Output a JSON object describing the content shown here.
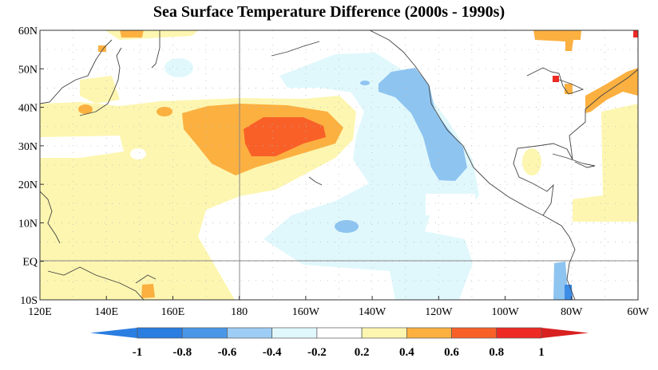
{
  "title": "Sea Surface Temperature Difference (2000s - 1990s)",
  "map": {
    "region": "North Pacific",
    "lon_range": [
      "120E",
      "60W"
    ],
    "lat_range": [
      "10S",
      "60N"
    ],
    "x_ticks": [
      "120E",
      "140E",
      "160E",
      "180",
      "160W",
      "140W",
      "120W",
      "100W",
      "80W",
      "60W"
    ],
    "y_ticks": [
      "60N",
      "50N",
      "40N",
      "30N",
      "20N",
      "10N",
      "EQ",
      "10S"
    ]
  },
  "colorbar": {
    "labels": [
      "-1",
      "-0.8",
      "-0.6",
      "-0.4",
      "-0.2",
      "0.2",
      "0.4",
      "0.6",
      "0.8",
      "1"
    ],
    "colors": [
      "#2a7de1",
      "#4a97e8",
      "#9dcdf5",
      "#e0f8fc",
      "#ffffff",
      "#fdf6b0",
      "#fbb040",
      "#f86028",
      "#ee2a24"
    ],
    "under_color": "#2a7de1",
    "over_color": "#d82020"
  },
  "fill_colors": {
    "light_blue": "#e0f8fc",
    "blue": "#8ec4f0",
    "dark_blue": "#3d8ce6",
    "yellow": "#fdf6b0",
    "orange": "#fbb040",
    "red_orange": "#f86028",
    "red": "#ee2a24"
  }
}
